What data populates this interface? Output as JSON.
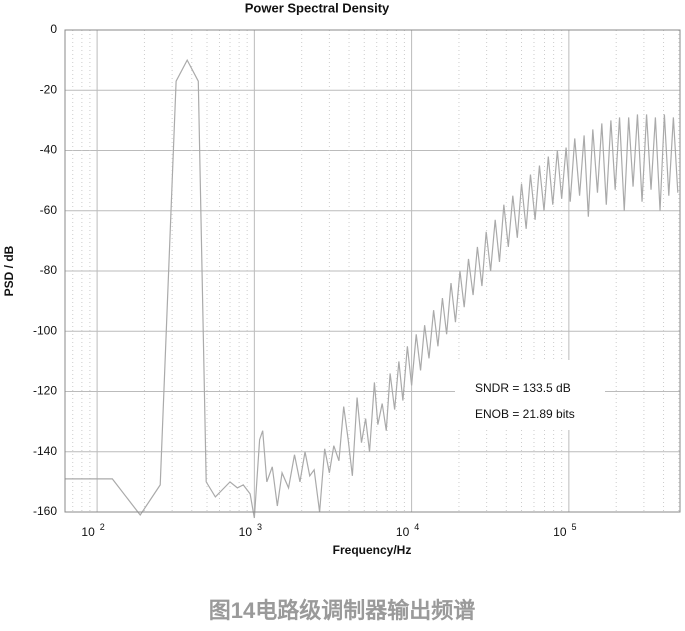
{
  "chart_data": {
    "type": "line",
    "title": "Power Spectral Density",
    "x_label": "Frequency/Hz",
    "y_label": "PSD / dB",
    "xscale": "log",
    "grid": true,
    "caption": "图14电路级调制器输出频谱",
    "annotations": [
      "SNDR = 133.5 dB",
      "ENOB = 21.89 bits"
    ],
    "xlim": [
      62.5,
      509000
    ],
    "ylim": [
      -160,
      0
    ],
    "xticks": [
      {
        "value": 100,
        "label": "10",
        "exponent": "2"
      },
      {
        "value": 1000,
        "label": "10",
        "exponent": "3"
      },
      {
        "value": 10000,
        "label": "10",
        "exponent": "4"
      },
      {
        "value": 100000,
        "label": "10",
        "exponent": "5"
      }
    ],
    "xminor_ticks": [
      70,
      80,
      90,
      200,
      300,
      400,
      500,
      600,
      700,
      800,
      900,
      2000,
      3000,
      4000,
      5000,
      6000,
      7000,
      8000,
      9000,
      20000,
      30000,
      40000,
      50000,
      60000,
      70000,
      80000,
      90000,
      200000,
      300000,
      400000,
      500000
    ],
    "yticks": [
      0,
      -20,
      -40,
      -60,
      -80,
      -100,
      -120,
      -140,
      -160
    ],
    "series": [
      {
        "color": "#aaaaaa",
        "x": [
          62.5,
          125,
          188,
          252,
          318,
          374,
          440,
          494,
          565,
          700,
          780,
          850,
          940,
          1000,
          1080,
          1130,
          1200,
          1300,
          1400,
          1500,
          1650,
          1800,
          1950,
          2100,
          2250,
          2400,
          2600,
          2800,
          3000,
          3200,
          3450,
          3700,
          3950,
          4200,
          4500,
          4800,
          5100,
          5400,
          5800,
          6100,
          6500,
          6900,
          7300,
          7800,
          8300,
          8800,
          9400,
          10000,
          10700,
          11400,
          12100,
          12900,
          13800,
          14700,
          15700,
          16700,
          17800,
          19000,
          20300,
          21600,
          23000,
          24600,
          26200,
          28000,
          29800,
          31800,
          34000,
          36200,
          38600,
          41200,
          44000,
          47000,
          50000,
          53500,
          57000,
          61000,
          65000,
          69500,
          74000,
          79000,
          84500,
          90000,
          96000,
          102000,
          109000,
          117000,
          125000,
          133000,
          142000,
          152000,
          162000,
          173000,
          185000,
          197000,
          210000,
          225000,
          240000,
          256000,
          273000,
          292000,
          312000,
          333000,
          355000,
          380000,
          405000,
          432000,
          462000,
          493000
        ],
        "values": [
          -149,
          -149,
          -161,
          -151,
          -17,
          -10,
          -17,
          -150,
          -155,
          -150,
          -152,
          -151,
          -154,
          -162,
          -136,
          -133,
          -150,
          -145,
          -158,
          -147,
          -152,
          -141,
          -150,
          -140,
          -148,
          -146,
          -160,
          -139,
          -147,
          -138,
          -143,
          -125,
          -136,
          -148,
          -122,
          -137,
          -129,
          -140,
          -117,
          -131,
          -124,
          -133,
          -114,
          -126,
          -110,
          -123,
          -105,
          -118,
          -101,
          -113,
          -98,
          -109,
          -93,
          -105,
          -89,
          -101,
          -84,
          -97,
          -80,
          -92,
          -76,
          -88,
          -72,
          -85,
          -67,
          -80,
          -63,
          -77,
          -58,
          -72,
          -55,
          -69,
          -51,
          -66,
          -48,
          -63,
          -45,
          -60,
          -42,
          -58,
          -40,
          -56,
          -39,
          -57,
          -36,
          -55,
          -35,
          -62,
          -33,
          -54,
          -31,
          -58,
          -30,
          -53,
          -29,
          -60,
          -29,
          -52,
          -28,
          -57,
          -28,
          -53,
          -29,
          -60,
          -28,
          -55,
          -29,
          -54
        ]
      }
    ]
  }
}
